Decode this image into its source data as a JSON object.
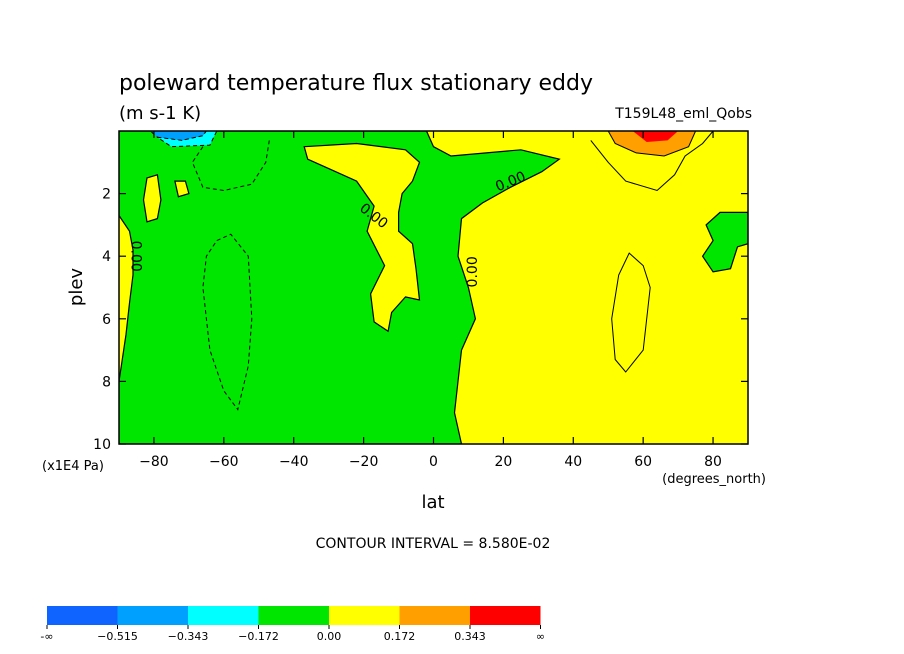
{
  "chart_data": {
    "type": "heatmap",
    "title": "poleward temperature flux stationary eddy",
    "subtitle": "(m s-1 K)",
    "run_label": "T159L48_eml_Qobs",
    "xlabel": "lat",
    "x_units": "(degrees_north)",
    "ylabel": "plev",
    "y_units": "(x1E4 Pa)",
    "xlim": [
      -90,
      90
    ],
    "ylim": [
      10,
      0
    ],
    "x_ticks": [
      -80,
      -60,
      -40,
      -20,
      0,
      20,
      40,
      60,
      80
    ],
    "x_tick_labels": [
      "−80",
      "−60",
      "−40",
      "−20",
      "0",
      "20",
      "40",
      "60",
      "80"
    ],
    "y_ticks": [
      2,
      4,
      6,
      8,
      10
    ],
    "y_tick_labels": [
      "2",
      "4",
      "6",
      "8",
      "10"
    ],
    "contour_interval_text": "CONTOUR INTERVAL = 8.580E-02",
    "contour_labels": [
      {
        "text": "0.00",
        "lat": -85,
        "plev": 4.0
      },
      {
        "text": "0.00",
        "lat": -17,
        "plev": 2.7
      },
      {
        "text": "0.00",
        "lat": 22,
        "plev": 1.6
      },
      {
        "text": "0.00",
        "lat": 11,
        "plev": 4.5
      }
    ],
    "colorbar": {
      "labels": [
        "-∞",
        "−0.515",
        "−0.343",
        "−0.172",
        "0.00",
        "0.172",
        "0.343",
        "∞"
      ],
      "colors": [
        "#0f64ff",
        "#00a0ff",
        "#00ffff",
        "#00e600",
        "#ffff00",
        "#ffa000",
        "#ff0000"
      ]
    },
    "colors": {
      "negative": "#00e600",
      "positive": "#ffff00",
      "orange": "#ffa000",
      "red": "#ff0000",
      "sky": "#00a0ff",
      "cyan": "#00ffff"
    }
  }
}
